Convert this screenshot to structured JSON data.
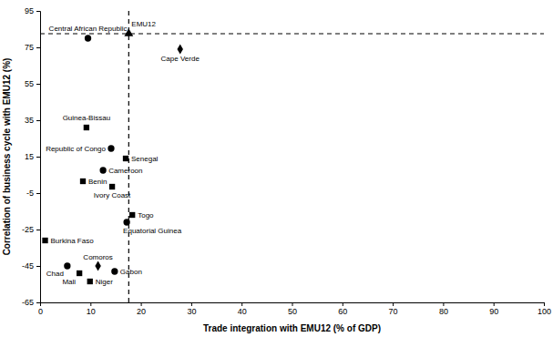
{
  "chart_data": {
    "type": "scatter",
    "x_label": "Trade integration with EMU12 (% of GDP)",
    "y_label": "Correlation of business cycle with EMU12 (%)",
    "xlim": [
      0,
      100
    ],
    "xticks": [
      0,
      10,
      20,
      30,
      40,
      50,
      60,
      70,
      80,
      90,
      100
    ],
    "ylim": [
      -65,
      95
    ],
    "yticks": [
      -65,
      -45,
      -25,
      -5,
      15,
      35,
      55,
      75,
      95
    ],
    "grid": false,
    "color": "#000000",
    "points": [
      {
        "label": "Central African Republic",
        "x": 9.5,
        "y": 80,
        "marker": "circle"
      },
      {
        "label": "Cape Verde",
        "x": 27.8,
        "y": 74,
        "marker": "diamond"
      },
      {
        "label": "Guinea-Bissau",
        "x": 9.2,
        "y": 31,
        "marker": "square"
      },
      {
        "label": "Republic of Congo",
        "x": 14.1,
        "y": 19.5,
        "marker": "circle"
      },
      {
        "label": "Senegal",
        "x": 17.0,
        "y": 14,
        "marker": "square"
      },
      {
        "label": "Cameroon",
        "x": 12.5,
        "y": 7.5,
        "marker": "circle"
      },
      {
        "label": "Benin",
        "x": 8.5,
        "y": 1.5,
        "marker": "square"
      },
      {
        "label": "Ivory Coast",
        "x": 14.3,
        "y": -1.5,
        "marker": "square"
      },
      {
        "label": "Togo",
        "x": 18.3,
        "y": -17,
        "marker": "square"
      },
      {
        "label": "Equatorial Guinea",
        "x": 17.2,
        "y": -21,
        "marker": "circle"
      },
      {
        "label": "Burkina Faso",
        "x": 1.0,
        "y": -31,
        "marker": "square"
      },
      {
        "label": "Comoros",
        "x": 11.5,
        "y": -45,
        "marker": "diamond"
      },
      {
        "label": "Chad",
        "x": 5.4,
        "y": -45,
        "marker": "circle"
      },
      {
        "label": "Mali",
        "x": 7.8,
        "y": -49,
        "marker": "square"
      },
      {
        "label": "Gabon",
        "x": 14.8,
        "y": -48,
        "marker": "circle"
      },
      {
        "label": "Niger",
        "x": 9.9,
        "y": -53.5,
        "marker": "square"
      },
      {
        "label": "EMU12",
        "x": 17.6,
        "y": 82.5,
        "marker": "triangle",
        "line_style": "dashed"
      }
    ]
  }
}
